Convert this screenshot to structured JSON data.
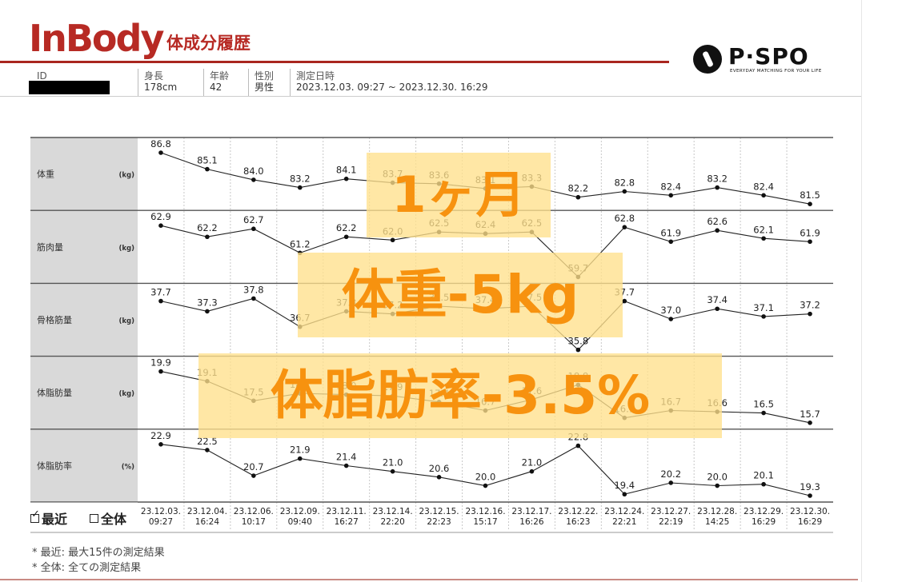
{
  "header": {
    "logo": "InBody",
    "title": "体成分履歴",
    "brand_name": "P·SPO",
    "brand_tagline": "EVERYDAY MATCHING FOR YOUR LIFE",
    "fields": {
      "id_label": "ID",
      "height_label": "身長",
      "height_value": "178cm",
      "age_label": "年齢",
      "age_value": "42",
      "sex_label": "性別",
      "sex_value": "男性",
      "date_label": "測定日時",
      "date_value": "2023.12.03. 09:27 ~ 2023.12.30. 16:29"
    }
  },
  "chart_data": {
    "type": "line",
    "x": [
      "23.12.03.\n09:27",
      "23.12.04.\n16:24",
      "23.12.06.\n10:17",
      "23.12.09.\n09:40",
      "23.12.11.\n16:27",
      "23.12.14.\n22:20",
      "23.12.15.\n22:23",
      "23.12.16.\n15:17",
      "23.12.17.\n16:26",
      "23.12.22.\n16:23",
      "23.12.24.\n22:21",
      "23.12.27.\n22:19",
      "23.12.28.\n14:25",
      "23.12.29.\n16:29",
      "23.12.30.\n16:29"
    ],
    "series": [
      {
        "name": "体重",
        "unit": "(kg)",
        "values": [
          86.8,
          85.1,
          84.0,
          83.2,
          84.1,
          83.7,
          83.6,
          83.1,
          83.3,
          82.2,
          82.8,
          82.4,
          83.2,
          82.4,
          81.5
        ]
      },
      {
        "name": "筋肉量",
        "unit": "(kg)",
        "values": [
          62.9,
          62.2,
          62.7,
          61.2,
          62.2,
          62.0,
          62.5,
          62.4,
          62.5,
          59.7,
          62.8,
          61.9,
          62.6,
          62.1,
          61.9
        ]
      },
      {
        "name": "骨格筋量",
        "unit": "(kg)",
        "values": [
          37.7,
          37.3,
          37.8,
          36.7,
          37.3,
          37.2,
          37.5,
          37.4,
          37.5,
          35.8,
          37.7,
          37.0,
          37.4,
          37.1,
          37.2
        ]
      },
      {
        "name": "体脂肪量",
        "unit": "(kg)",
        "values": [
          19.9,
          19.1,
          17.5,
          18.1,
          18.0,
          17.9,
          17.4,
          16.7,
          17.6,
          18.8,
          16.1,
          16.7,
          16.6,
          16.5,
          15.7
        ]
      },
      {
        "name": "体脂肪率",
        "unit": "(%)",
        "values": [
          22.9,
          22.5,
          20.7,
          21.9,
          21.4,
          21.0,
          20.6,
          20.0,
          21.0,
          22.8,
          19.4,
          20.2,
          20.0,
          20.1,
          19.3
        ]
      }
    ]
  },
  "legend": {
    "recent": "最近",
    "all": "全体"
  },
  "notes": [
    "* 最近: 最大15件の測定結果",
    "* 全体: 全ての測定結果"
  ],
  "overlay": [
    "1ヶ月",
    "体重-5kg",
    "体脂肪率-3.5%"
  ],
  "colors": {
    "brand": "#b72a24",
    "overlay_text": "#f7920f",
    "overlay_bg": "#ffe08c",
    "label_bg": "#d9d9d9"
  }
}
